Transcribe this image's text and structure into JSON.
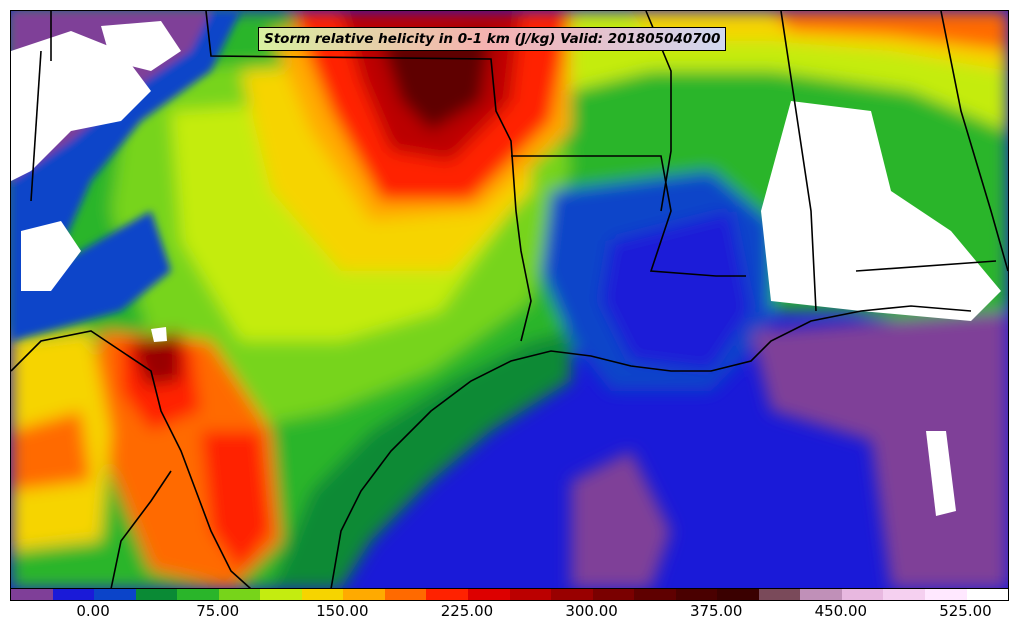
{
  "title": "Storm relative helicity in 0-1 km (J/kg) Valid: 201805040700",
  "colorbar": {
    "colors": [
      "#7f3f98",
      "#1a1ad8",
      "#0b44c9",
      "#0a8a35",
      "#2ab52a",
      "#77d41a",
      "#c4ec10",
      "#f6d400",
      "#ffaa00",
      "#ff6a00",
      "#ff2200",
      "#dd0000",
      "#bb0000",
      "#990000",
      "#7a0000",
      "#5f0000",
      "#4a0000",
      "#3a0000",
      "#7a4a5a",
      "#c090b8",
      "#e8b8e0",
      "#f5d0f0",
      "#ffe8ff",
      "#ffffff"
    ],
    "tick_labels": [
      "0.00",
      "75.00",
      "150.00",
      "225.00",
      "300.00",
      "375.00",
      "450.00",
      "525.00"
    ]
  }
}
